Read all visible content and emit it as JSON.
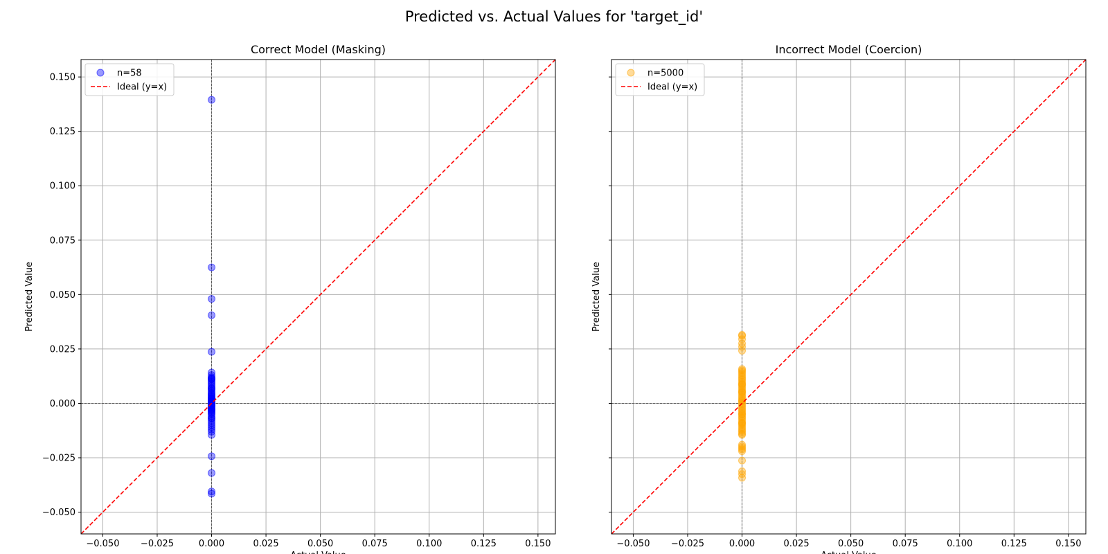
{
  "figure": {
    "suptitle": "Predicted vs. Actual Values for 'target_id'"
  },
  "chart_data": [
    {
      "type": "scatter",
      "title": "Correct Model (Masking)",
      "xlabel": "Actual Value",
      "ylabel": "Predicted Value",
      "xlim": [
        -0.06,
        0.158
      ],
      "ylim": [
        -0.06,
        0.158
      ],
      "xticks": [
        -0.05,
        -0.025,
        0,
        0.025,
        0.05,
        0.075,
        0.1,
        0.125,
        0.15
      ],
      "xtick_labels": [
        "−0.050",
        "−0.025",
        "0.000",
        "0.025",
        "0.050",
        "0.075",
        "0.100",
        "0.125",
        "0.150"
      ],
      "yticks": [
        -0.05,
        -0.025,
        0,
        0.025,
        0.05,
        0.075,
        0.1,
        0.125,
        0.15
      ],
      "ytick_labels": [
        "−0.050",
        "−0.025",
        "0.000",
        "0.025",
        "0.050",
        "0.075",
        "0.100",
        "0.125",
        "0.150"
      ],
      "show_ytick_labels": true,
      "grid": true,
      "legend": {
        "position": "upper-left",
        "entries": [
          "n=58",
          "Ideal (y=x)"
        ]
      },
      "series": [
        {
          "name": "n=58",
          "marker_color": "#0000ff",
          "alpha": 0.4,
          "x": [
            0,
            0,
            0,
            0,
            0,
            0,
            0,
            0,
            0,
            0,
            0,
            0,
            0,
            0,
            0,
            0,
            0,
            0,
            0,
            0,
            0,
            0,
            0,
            0,
            0,
            0,
            0,
            0,
            0,
            0,
            0,
            0,
            0,
            0,
            0,
            0,
            0,
            0,
            0,
            0,
            0,
            0,
            0,
            0,
            0,
            0,
            0,
            0,
            0,
            0,
            0,
            0,
            0,
            0,
            0,
            0,
            0,
            0
          ],
          "y": [
            0.1395,
            0.0625,
            0.048,
            0.0405,
            0.0237,
            0.0142,
            0.013,
            0.012,
            0.011,
            0.0102,
            0.0095,
            0.0088,
            0.008,
            0.0072,
            0.0065,
            0.0058,
            0.005,
            0.0045,
            0.004,
            0.0035,
            0.003,
            0.0025,
            0.002,
            0.0015,
            0.001,
            0.0005,
            0.0,
            -0.0005,
            -0.001,
            -0.0015,
            -0.002,
            -0.0025,
            -0.003,
            -0.0035,
            -0.004,
            -0.0045,
            -0.005,
            -0.006,
            -0.007,
            -0.008,
            -0.009,
            -0.01,
            -0.011,
            -0.012,
            -0.013,
            -0.0145,
            0.0113,
            0.0068,
            0.0022,
            -0.0028,
            0.0009,
            -0.0068,
            -0.0243,
            -0.032,
            -0.0405,
            -0.0415,
            0.0115,
            -0.001
          ]
        },
        {
          "name": "Ideal (y=x)",
          "type": "line",
          "style": "dashed",
          "color": "#ff0000",
          "x": [
            -0.06,
            0.158
          ],
          "y": [
            -0.06,
            0.158
          ]
        }
      ]
    },
    {
      "type": "scatter",
      "title": "Incorrect Model (Coercion)",
      "xlabel": "Actual Value",
      "ylabel": "Predicted Value",
      "xlim": [
        -0.06,
        0.158
      ],
      "ylim": [
        -0.06,
        0.158
      ],
      "xticks": [
        -0.05,
        -0.025,
        0,
        0.025,
        0.05,
        0.075,
        0.1,
        0.125,
        0.15
      ],
      "xtick_labels": [
        "−0.050",
        "−0.025",
        "0.000",
        "0.025",
        "0.050",
        "0.075",
        "0.100",
        "0.125",
        "0.150"
      ],
      "yticks": [
        -0.05,
        -0.025,
        0,
        0.025,
        0.05,
        0.075,
        0.1,
        0.125,
        0.15
      ],
      "ytick_labels": [],
      "show_ytick_labels": false,
      "grid": true,
      "legend": {
        "position": "upper-left",
        "entries": [
          "n=5000",
          "Ideal (y=x)"
        ]
      },
      "series": [
        {
          "name": "n=5000",
          "marker_color": "#ffa500",
          "alpha": 0.4,
          "x": [
            0,
            0,
            0,
            0,
            0,
            0,
            0,
            0,
            0,
            0,
            0,
            0,
            0,
            0,
            0,
            0,
            0,
            0,
            0,
            0,
            0,
            0,
            0,
            0,
            0,
            0,
            0,
            0,
            0,
            0,
            0,
            0,
            0,
            0,
            0,
            0,
            0,
            0,
            0,
            0,
            0,
            0,
            0,
            0,
            0,
            0,
            0,
            0,
            0,
            0,
            0,
            0,
            0,
            0,
            0,
            0,
            0,
            0,
            0,
            0,
            0,
            0
          ],
          "y": [
            0.0315,
            0.031,
            0.0295,
            0.0275,
            0.026,
            0.0242,
            0.0158,
            0.0152,
            0.0145,
            0.0138,
            0.013,
            0.0122,
            0.0115,
            0.0108,
            0.01,
            0.0092,
            0.0085,
            0.0078,
            0.007,
            0.0062,
            0.0055,
            0.0048,
            0.004,
            0.0032,
            0.0025,
            0.0018,
            0.001,
            0.0003,
            -0.0005,
            -0.0012,
            -0.002,
            -0.0028,
            -0.0035,
            -0.0042,
            -0.005,
            -0.0058,
            -0.0065,
            -0.0072,
            -0.008,
            -0.0088,
            -0.0095,
            -0.0102,
            -0.011,
            -0.0118,
            -0.0125,
            -0.0132,
            -0.014,
            -0.0145,
            -0.019,
            -0.0198,
            -0.0205,
            -0.0212,
            -0.022,
            -0.0263,
            -0.0312,
            -0.0325,
            -0.0342,
            0.0052,
            -0.0049,
            0.0088,
            -0.0091,
            0.0012
          ]
        },
        {
          "name": "Ideal (y=x)",
          "type": "line",
          "style": "dashed",
          "color": "#ff0000",
          "x": [
            -0.06,
            0.158
          ],
          "y": [
            -0.06,
            0.158
          ]
        }
      ]
    }
  ]
}
